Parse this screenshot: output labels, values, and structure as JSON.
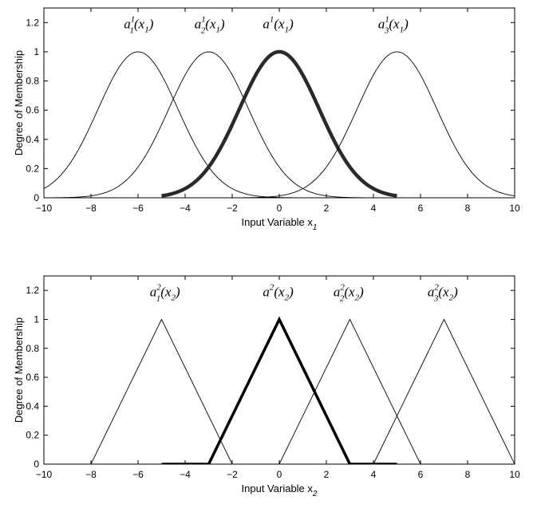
{
  "chart_data": [
    {
      "type": "line",
      "xlabel": "Input Variable x",
      "xlabel_sub": "1",
      "ylabel": "Degree of Membership",
      "xlim": [
        -10,
        10
      ],
      "ylim": [
        0,
        1.3
      ],
      "xticks": [
        -10,
        -8,
        -6,
        -4,
        -2,
        0,
        2,
        4,
        6,
        8,
        10
      ],
      "yticks": [
        0,
        0.2,
        0.4,
        0.6,
        0.8,
        1,
        1.2
      ],
      "grid": false,
      "series": [
        {
          "name": "a_1^1(x_1)",
          "shape": "gaussian",
          "center": -6,
          "sigma": 1.7,
          "x_range": [
            -10,
            10
          ],
          "style": "thin"
        },
        {
          "name": "a_2^1(x_1)",
          "shape": "gaussian",
          "center": -3,
          "sigma": 1.7,
          "x_range": [
            -10,
            10
          ],
          "style": "thin"
        },
        {
          "name": "a^1(x_1)",
          "shape": "gaussian",
          "center": 0,
          "sigma": 1.7,
          "x_range": [
            -5,
            5
          ],
          "style": "bold"
        },
        {
          "name": "a_3^1(x_1)",
          "shape": "gaussian",
          "center": 5,
          "sigma": 1.7,
          "x_range": [
            -10,
            10
          ],
          "style": "thin"
        }
      ],
      "annotations": [
        {
          "base": "a",
          "sup": "1",
          "sub": "1",
          "arg": "(x",
          "arg_sub": "1",
          "close": ")",
          "x": -6.6,
          "y": 1.16
        },
        {
          "base": "a",
          "sup": "1",
          "sub": "2",
          "arg": "(x",
          "arg_sub": "1",
          "close": ")",
          "x": -3.6,
          "y": 1.16
        },
        {
          "base": "a",
          "sup": "1",
          "sub": "",
          "arg": "(x",
          "arg_sub": "1",
          "close": ")",
          "x": -0.7,
          "y": 1.16
        },
        {
          "base": "a",
          "sup": "1",
          "sub": "3",
          "arg": "(x",
          "arg_sub": "1",
          "close": ")",
          "x": 4.2,
          "y": 1.16
        }
      ]
    },
    {
      "type": "line",
      "xlabel": "Input Variable x",
      "xlabel_sub": "2",
      "ylabel": "Degree of Membership",
      "xlim": [
        -10,
        10
      ],
      "ylim": [
        0,
        1.3
      ],
      "xticks": [
        -10,
        -8,
        -6,
        -4,
        -2,
        0,
        2,
        4,
        6,
        8,
        10
      ],
      "yticks": [
        0,
        0.2,
        0.4,
        0.6,
        0.8,
        1,
        1.2
      ],
      "grid": false,
      "series": [
        {
          "name": "a_1^2(x_2)",
          "shape": "triangle",
          "points": [
            [
              -8,
              0
            ],
            [
              -5,
              1
            ],
            [
              -2,
              0
            ]
          ],
          "style": "thin"
        },
        {
          "name": "a^2(x_2)",
          "shape": "triangle",
          "points": [
            [
              -5,
              0
            ],
            [
              -3,
              0
            ],
            [
              0,
              1
            ],
            [
              3,
              0
            ],
            [
              5,
              0
            ]
          ],
          "style": "bold"
        },
        {
          "name": "a_2^2(x_2)",
          "shape": "triangle",
          "points": [
            [
              0,
              0
            ],
            [
              3,
              1
            ],
            [
              6,
              0
            ]
          ],
          "style": "thin"
        },
        {
          "name": "a_3^2(x_2)",
          "shape": "triangle",
          "points": [
            [
              4,
              0
            ],
            [
              7,
              1
            ],
            [
              10,
              0
            ]
          ],
          "style": "thin"
        }
      ],
      "annotations": [
        {
          "base": "a",
          "sup": "2",
          "sub": "1",
          "arg": "(x",
          "arg_sub": "2",
          "close": ")",
          "x": -5.5,
          "y": 1.16
        },
        {
          "base": "a",
          "sup": "2",
          "sub": "",
          "arg": "(x",
          "arg_sub": "2",
          "close": ")",
          "x": -0.7,
          "y": 1.16
        },
        {
          "base": "a",
          "sup": "2",
          "sub": "2",
          "arg": "(x",
          "arg_sub": "2",
          "close": ")",
          "x": 2.3,
          "y": 1.16
        },
        {
          "base": "a",
          "sup": "2",
          "sub": "3",
          "arg": "(x",
          "arg_sub": "2",
          "close": ")",
          "x": 6.3,
          "y": 1.16
        }
      ]
    }
  ]
}
